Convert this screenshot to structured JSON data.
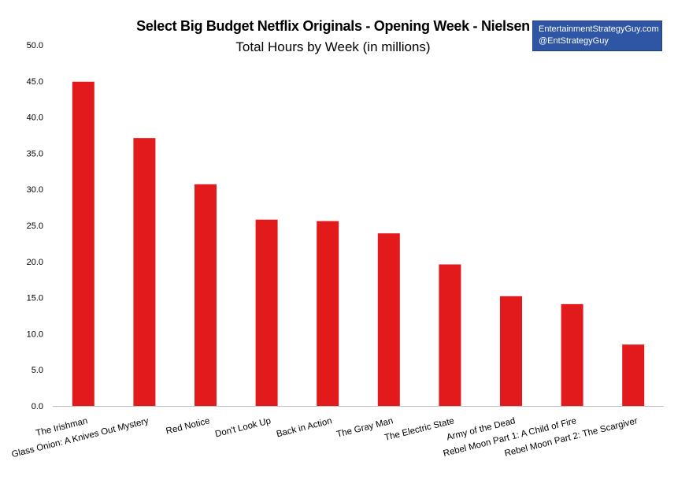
{
  "chart_data": {
    "type": "bar",
    "title": "Select Big Budget Netflix Originals - Opening Week - Nielsen",
    "subtitle": "Total Hours by Week (in millions)",
    "xlabel": "",
    "ylabel": "",
    "ylim": [
      0,
      50
    ],
    "yticks": [
      "0.0",
      "5.0",
      "10.0",
      "15.0",
      "20.0",
      "25.0",
      "30.0",
      "35.0",
      "40.0",
      "45.0",
      "50.0"
    ],
    "categories": [
      "The Irishman",
      "Glass Onion: A Knives Out Mystery",
      "Red Notice",
      "Don't Look Up",
      "Back in Action",
      "The Gray Man",
      "The Electric State",
      "Army of the Dead",
      "Rebel Moon Part 1: A Child of Fire",
      "Rebel Moon Part 2: The Scargiver"
    ],
    "values": [
      44.9,
      37.1,
      30.7,
      25.8,
      25.6,
      23.9,
      19.6,
      15.2,
      14.1,
      8.5
    ],
    "bar_color": "#e31a1c",
    "grid": false,
    "legend": "none"
  },
  "credit": {
    "website": "EntertainmentStrategyGuy.com",
    "handle": "@EntStrategyGuy",
    "box_color": "#2f56a4"
  }
}
